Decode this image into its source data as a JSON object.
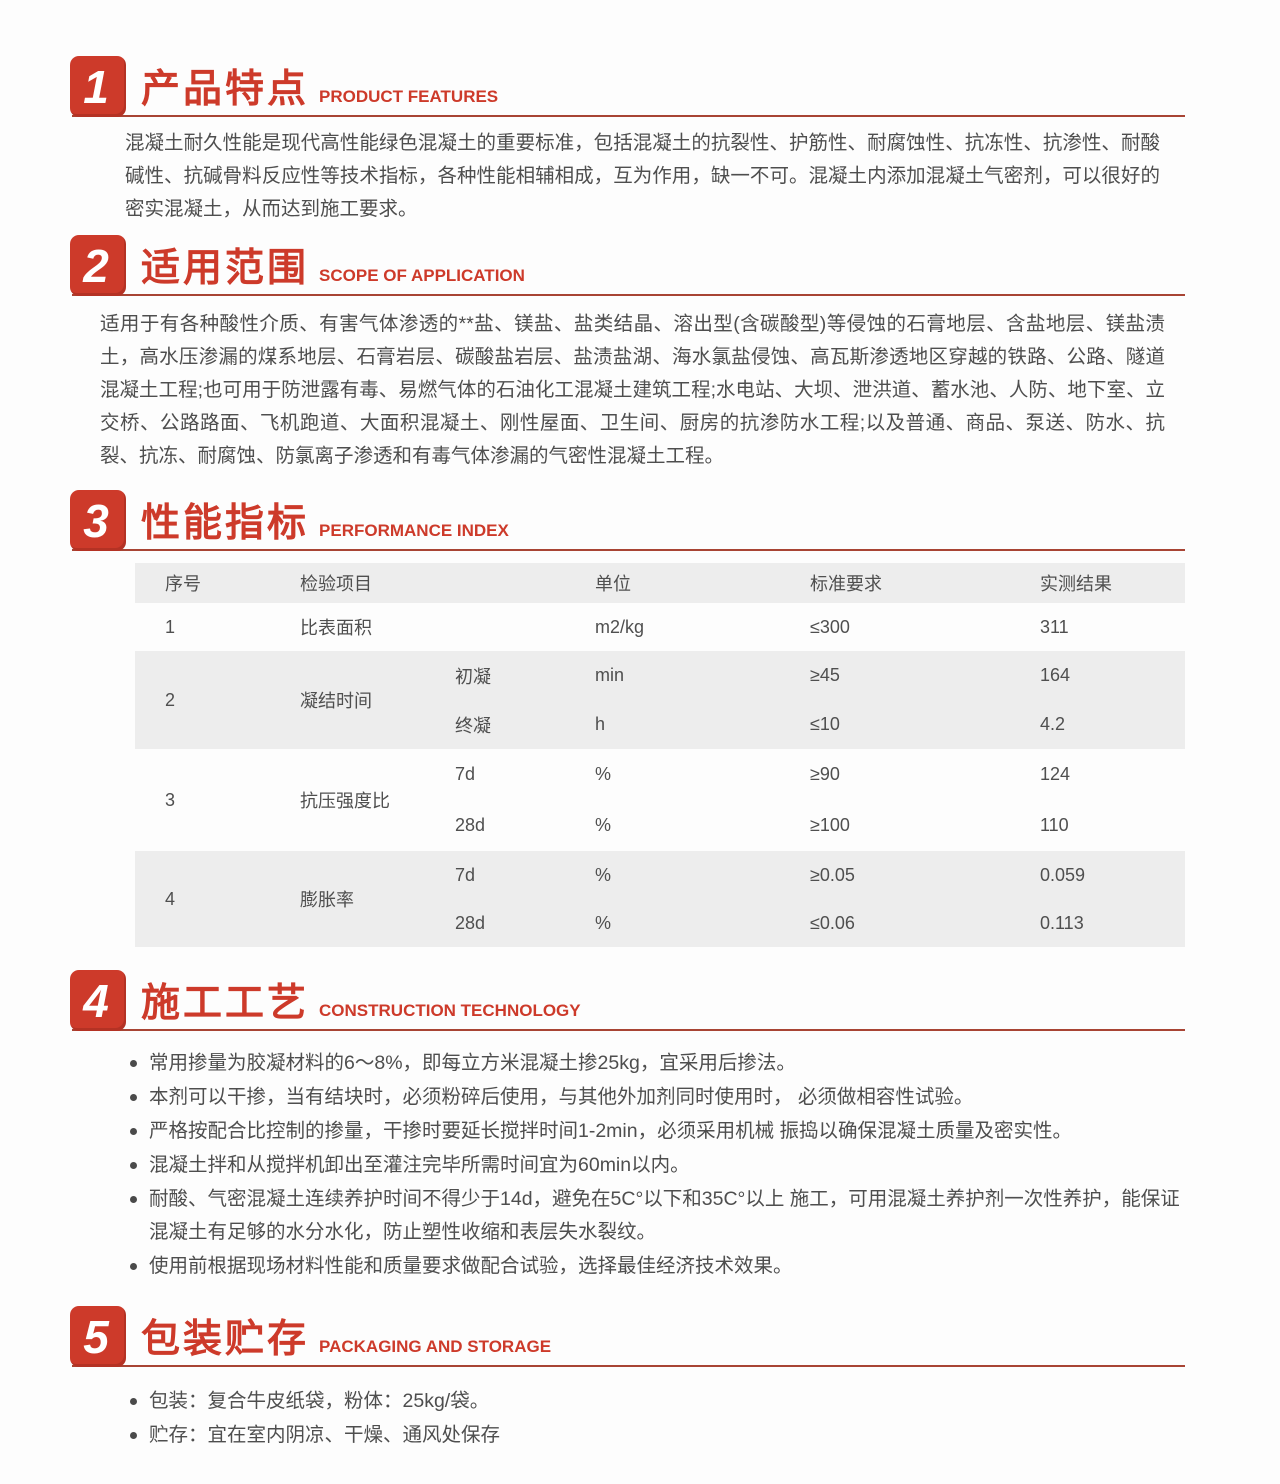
{
  "theme": {
    "accent_red": "#cd3a2a",
    "underline_red": "#a84434",
    "table_stripe": "#ededed",
    "body_text": "#4e4e4e"
  },
  "sections": [
    {
      "num": "1",
      "title_zh": "产品特点",
      "title_en": "PRODUCT FEATURES",
      "paragraph": "混凝土耐久性能是现代高性能绿色混凝土的重要标准，包括混凝土的抗裂性、护筋性、耐腐蚀性、抗冻性、抗渗性、耐酸碱性、抗碱骨料反应性等技术指标，各种性能相辅相成，互为作用，缺一不可。混凝土内添加混凝土气密剂，可以很好的密实混凝土，从而达到施工要求。"
    },
    {
      "num": "2",
      "title_zh": "适用范围",
      "title_en": "SCOPE OF APPLICATION",
      "paragraph": "适用于有各种酸性介质、有害气体渗透的**盐、镁盐、盐类结晶、溶出型(含碳酸型)等侵蚀的石膏地层、含盐地层、镁盐渍土，高水压渗漏的煤系地层、石膏岩层、碳酸盐岩层、盐渍盐湖、海水氯盐侵蚀、高瓦斯渗透地区穿越的铁路、公路、隧道混凝土工程;也可用于防泄露有毒、易燃气体的石油化工混凝土建筑工程;水电站、大坝、泄洪道、蓄水池、人防、地下室、立交桥、公路路面、飞机跑道、大面积混凝土、刚性屋面、卫生间、厨房的抗渗防水工程;以及普通、商品、泵送、防水、抗裂、抗冻、耐腐蚀、防氯离子渗透和有毒气体渗漏的气密性混凝土工程。"
    },
    {
      "num": "3",
      "title_zh": "性能指标",
      "title_en": "PERFORMANCE INDEX",
      "table": {
        "headers": [
          "序号",
          "检验项目",
          "单位",
          "标准要求",
          "实测结果"
        ],
        "rows": [
          {
            "no": "1",
            "item": "比表面积",
            "subs": [
              {
                "sub": "",
                "unit": "m2/kg",
                "req": "≤300",
                "result": "311"
              }
            ]
          },
          {
            "no": "2",
            "item": "凝结时间",
            "subs": [
              {
                "sub": "初凝",
                "unit": "min",
                "req": "≥45",
                "result": "164"
              },
              {
                "sub": "终凝",
                "unit": "h",
                "req": "≤10",
                "result": "4.2"
              }
            ]
          },
          {
            "no": "3",
            "item": "抗压强度比",
            "subs": [
              {
                "sub": "7d",
                "unit": "%",
                "req": "≥90",
                "result": "124"
              },
              {
                "sub": "28d",
                "unit": "%",
                "req": "≥100",
                "result": "110"
              }
            ]
          },
          {
            "no": "4",
            "item": "膨胀率",
            "subs": [
              {
                "sub": "7d",
                "unit": "%",
                "req": "≥0.05",
                "result": "0.059"
              },
              {
                "sub": "28d",
                "unit": "%",
                "req": "≤0.06",
                "result": "0.113"
              }
            ]
          }
        ]
      }
    },
    {
      "num": "4",
      "title_zh": "施工工艺",
      "title_en": "CONSTRUCTION TECHNOLOGY",
      "bullets": [
        "常用掺量为胶凝材料的6～8%，即每立方米混凝土掺25kg，宜采用后掺法。",
        "本剂可以干掺，当有结块时，必须粉碎后使用，与其他外加剂同时使用时， 必须做相容性试验。",
        "严格按配合比控制的掺量，干掺时要延长搅拌时间1-2min，必须采用机械 振捣以确保混凝土质量及密实性。",
        "混凝土拌和从搅拌机卸出至灌注完毕所需时间宜为60min以内。",
        "耐酸、气密混凝土连续养护时间不得少于14d，避免在5C°以下和35C°以上 施工，可用混凝土养护剂一次性养护，能保证混凝土有足够的水分水化，防止塑性收缩和表层失水裂纹。",
        "使用前根据现场材料性能和质量要求做配合试验，选择最佳经济技术效果。"
      ]
    },
    {
      "num": "5",
      "title_zh": "包装贮存",
      "title_en": "PACKAGING AND STORAGE",
      "bullets": [
        "包装：复合牛皮纸袋，粉体：25kg/袋。",
        "贮存：宜在室内阴凉、干燥、通风处保存"
      ]
    }
  ]
}
